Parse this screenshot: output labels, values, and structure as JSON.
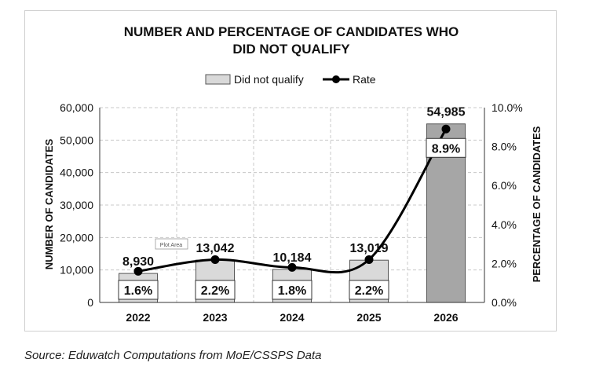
{
  "chart_data": {
    "type": "bar",
    "title_line1": "NUMBER AND PERCENTAGE OF CANDIDATES WHO",
    "title_line2": "DID NOT QUALIFY",
    "categories": [
      "2022",
      "2023",
      "2024",
      "2025",
      "2026"
    ],
    "series": [
      {
        "name": "Did not qualify",
        "type": "bar",
        "values": [
          8930,
          13042,
          10184,
          13019,
          54985
        ],
        "value_labels": [
          "8,930",
          "13,042",
          "10,184",
          "13,019",
          "54,985"
        ],
        "colors": [
          "#d9d9d9",
          "#d9d9d9",
          "#d9d9d9",
          "#d9d9d9",
          "#a6a6a6"
        ]
      },
      {
        "name": "Rate",
        "type": "line",
        "axis": "right",
        "values": [
          1.6,
          2.2,
          1.8,
          2.2,
          8.9
        ],
        "value_labels": [
          "1.6%",
          "2.2%",
          "1.8%",
          "2.2%",
          "8.9%"
        ]
      }
    ],
    "ylabel": "NUMBER OF CANDIDATES",
    "y2label": "PERCENTAGE OF CANDIDATES",
    "ylim": [
      0,
      60000
    ],
    "y_ticks": [
      0,
      10000,
      20000,
      30000,
      40000,
      50000,
      60000
    ],
    "y_tick_labels": [
      "0",
      "10,000",
      "20,000",
      "30,000",
      "40,000",
      "50,000",
      "60,000"
    ],
    "y2lim": [
      0,
      10
    ],
    "y2_ticks": [
      0,
      2,
      4,
      6,
      8,
      10
    ],
    "y2_tick_labels": [
      "0.0%",
      "2.0%",
      "4.0%",
      "6.0%",
      "8.0%",
      "10.0%"
    ],
    "legend_position": "top-center",
    "grid": true,
    "tooltip_label": "Plot Area"
  },
  "source": "Source: Eduwatch Computations from MoE/CSSPS Data"
}
